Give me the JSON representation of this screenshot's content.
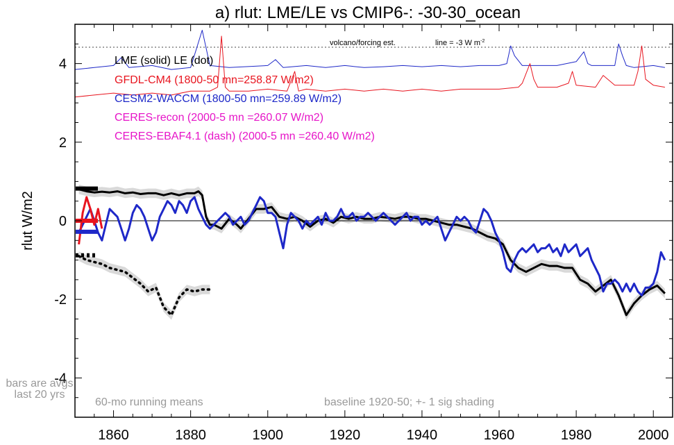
{
  "chart_data": {
    "type": "line",
    "title": "a) rlut: LME/LE vs CMIP6-: -30-30_ocean",
    "ylabel": "rlut W/m2",
    "xlabel": "",
    "xlim": [
      1850,
      2005
    ],
    "ylim": [
      -5,
      5
    ],
    "x_ticks": [
      1860,
      1880,
      1900,
      1920,
      1940,
      1960,
      1980,
      2000
    ],
    "y_ticks": [
      -4,
      -2,
      0,
      2,
      4
    ],
    "zero_line": true,
    "legend": [
      {
        "text": "LME (solid)   LE (dot)",
        "color": "#000000"
      },
      {
        "text": "GFDL-CM4 (1800-50 mn=258.87 W/m2)",
        "color": "#e8141e"
      },
      {
        "text": "CESM2-WACCM (1800-50 mn=259.89 W/m2)",
        "color": "#1e28c8"
      },
      {
        "text": "CERES-recon (2000-5 mn =260.07 W/m2)",
        "color": "#e614c8"
      },
      {
        "text": "CERES-EBAF4.1 (dash) (2000-5 mn =260.40 W/m2)",
        "color": "#e614c8"
      }
    ],
    "annotations": {
      "volcano": "volcano/forcing est.",
      "line_note": "line = -3 W m",
      "line_note_sup": "-2",
      "bars_note": [
        "bars are avgs",
        "last 20 yrs"
      ],
      "running_note": "60-mo running means",
      "baseline_note": "baseline 1920-50; +- 1 sig shading"
    },
    "series": [
      {
        "name": "LME (solid)",
        "color": "#000000",
        "style": "solid",
        "shading": "+-1 sig",
        "x": [
          1851,
          1853,
          1855,
          1857,
          1859,
          1861,
          1863,
          1865,
          1867,
          1869,
          1871,
          1873,
          1875,
          1877,
          1879,
          1881,
          1882,
          1883,
          1884,
          1885,
          1886,
          1888,
          1890,
          1892,
          1893,
          1895,
          1897,
          1899,
          1901,
          1903,
          1905,
          1907,
          1909,
          1911,
          1913,
          1915,
          1917,
          1919,
          1921,
          1923,
          1925,
          1927,
          1929,
          1931,
          1933,
          1935,
          1937,
          1939,
          1941,
          1943,
          1945,
          1947,
          1949,
          1951,
          1953,
          1955,
          1957,
          1959,
          1961,
          1963,
          1965,
          1967,
          1969,
          1971,
          1973,
          1975,
          1977,
          1979,
          1981,
          1983,
          1985,
          1987,
          1989,
          1991,
          1993,
          1995,
          1997,
          1999,
          2001,
          2003
        ],
        "y": [
          0.8,
          0.75,
          0.72,
          0.74,
          0.72,
          0.75,
          0.7,
          0.72,
          0.68,
          0.7,
          0.7,
          0.65,
          0.7,
          0.65,
          0.7,
          0.7,
          0.75,
          0.65,
          0.1,
          -0.1,
          -0.1,
          -0.2,
          0.05,
          -0.1,
          -0.2,
          0.05,
          0.3,
          0.3,
          0.35,
          0.1,
          0.05,
          0.1,
          0.0,
          -0.15,
          0.0,
          0.05,
          -0.05,
          0.1,
          0.05,
          0.1,
          0.05,
          0.05,
          0.1,
          0.08,
          0.05,
          0.1,
          0.1,
          0.05,
          0.05,
          0.0,
          -0.05,
          -0.1,
          -0.1,
          -0.15,
          -0.2,
          -0.3,
          -0.4,
          -0.45,
          -0.6,
          -1.0,
          -1.2,
          -1.3,
          -1.2,
          -1.1,
          -1.15,
          -1.15,
          -1.2,
          -1.2,
          -1.5,
          -1.6,
          -1.8,
          -1.65,
          -1.5,
          -1.9,
          -2.4,
          -2.1,
          -1.9,
          -1.75,
          -1.65,
          -1.85
        ]
      },
      {
        "name": "LE (dot)",
        "color": "#000000",
        "style": "dot",
        "shading": "+-1 sig",
        "x": [
          1851,
          1853,
          1855,
          1857,
          1859,
          1861,
          1863,
          1865,
          1867,
          1869,
          1871,
          1873,
          1875,
          1877,
          1879,
          1881,
          1883,
          1885
        ],
        "y": [
          -0.9,
          -1.0,
          -1.05,
          -1.1,
          -1.2,
          -1.25,
          -1.3,
          -1.45,
          -1.6,
          -1.8,
          -1.7,
          -2.2,
          -2.4,
          -1.95,
          -1.75,
          -1.8,
          -1.75,
          -1.75
        ]
      },
      {
        "name": "CESM2-WACCM",
        "color": "#1e28c8",
        "style": "solid",
        "x": [
          1851,
          1852,
          1853,
          1854,
          1855,
          1856,
          1857,
          1858,
          1859,
          1860,
          1861,
          1862,
          1863,
          1864,
          1865,
          1866,
          1867,
          1868,
          1869,
          1870,
          1871,
          1872,
          1873,
          1874,
          1875,
          1876,
          1877,
          1878,
          1879,
          1880,
          1881,
          1882,
          1883,
          1884,
          1885,
          1886,
          1887,
          1888,
          1889,
          1890,
          1891,
          1892,
          1893,
          1894,
          1895,
          1896,
          1897,
          1898,
          1899,
          1900,
          1901,
          1902,
          1903,
          1904,
          1905,
          1906,
          1907,
          1908,
          1909,
          1910,
          1911,
          1912,
          1913,
          1914,
          1915,
          1916,
          1917,
          1918,
          1919,
          1920,
          1921,
          1922,
          1923,
          1924,
          1925,
          1926,
          1927,
          1928,
          1929,
          1930,
          1931,
          1932,
          1933,
          1934,
          1935,
          1936,
          1937,
          1938,
          1939,
          1940,
          1941,
          1942,
          1943,
          1944,
          1945,
          1946,
          1947,
          1948,
          1949,
          1950,
          1951,
          1952,
          1953,
          1954,
          1955,
          1956,
          1957,
          1958,
          1959,
          1960,
          1961,
          1962,
          1963,
          1964,
          1965,
          1966,
          1967,
          1968,
          1969,
          1970,
          1971,
          1972,
          1973,
          1974,
          1975,
          1976,
          1977,
          1978,
          1979,
          1980,
          1981,
          1982,
          1983,
          1984,
          1985,
          1986,
          1987,
          1988,
          1989,
          1990,
          1991,
          1992,
          1993,
          1994,
          1995,
          1996,
          1997,
          1998,
          1999,
          2000,
          2001,
          2002,
          2003
        ],
        "y": [
          -0.3,
          -0.1,
          0.1,
          0.3,
          0.0,
          -0.3,
          -0.5,
          -0.1,
          0.3,
          0.2,
          0.1,
          -0.2,
          -0.5,
          -0.2,
          0.2,
          0.4,
          0.3,
          0.1,
          -0.2,
          -0.5,
          -0.3,
          0.1,
          0.3,
          0.5,
          0.4,
          0.2,
          0.5,
          0.4,
          0.2,
          0.5,
          0.6,
          0.3,
          0.1,
          -0.1,
          -0.2,
          -0.1,
          0.0,
          0.1,
          0.2,
          0.1,
          -0.1,
          0.0,
          0.1,
          -0.1,
          0.0,
          0.2,
          0.4,
          0.6,
          0.5,
          0.2,
          0.2,
          0.1,
          -0.3,
          -0.7,
          -0.1,
          0.2,
          0.1,
          0.0,
          -0.2,
          0.0,
          -0.1,
          0.0,
          0.1,
          -0.1,
          0.2,
          0.0,
          0.0,
          0.1,
          0.3,
          0.1,
          0.1,
          0.2,
          0.0,
          0.1,
          0.1,
          0.2,
          0.1,
          0.0,
          0.1,
          0.2,
          0.1,
          0.0,
          -0.1,
          0.0,
          0.1,
          0.2,
          0.0,
          0.1,
          0.1,
          -0.1,
          0.0,
          -0.1,
          0.0,
          0.1,
          -0.2,
          -0.5,
          -0.3,
          -0.1,
          0.1,
          0.0,
          0.1,
          0.0,
          -0.2,
          -0.3,
          0.0,
          0.3,
          0.2,
          0.0,
          -0.3,
          -0.5,
          -0.8,
          -1.2,
          -1.3,
          -1.0,
          -0.8,
          -0.7,
          -0.8,
          -0.7,
          -0.6,
          -0.8,
          -0.7,
          -0.7,
          -0.6,
          -0.8,
          -0.7,
          -0.9,
          -0.6,
          -0.8,
          -0.7,
          -0.6,
          -0.9,
          -0.8,
          -0.7,
          -1.0,
          -1.2,
          -1.4,
          -1.8,
          -1.6,
          -1.6,
          -1.5,
          -1.6,
          -1.8,
          -1.6,
          -1.8,
          -1.6,
          -1.8,
          -1.9,
          -1.7,
          -1.7,
          -1.6,
          -1.3,
          -0.8,
          -1.0
        ]
      },
      {
        "name": "GFDL-CM4",
        "color": "#e8141e",
        "style": "solid",
        "x": [
          1851,
          1852,
          1853,
          1854,
          1855,
          1856,
          1857
        ],
        "y": [
          -0.6,
          0.2,
          0.6,
          0.3,
          -0.1,
          0.3,
          -0.2
        ]
      },
      {
        "name": "CESM2-WACCM volcano/forcing est.",
        "color": "#1e28c8",
        "style": "solid",
        "x": [
          1850,
          1855,
          1860,
          1862,
          1864,
          1870,
          1875,
          1880,
          1883,
          1884,
          1885,
          1890,
          1900,
          1902,
          1904,
          1910,
          1915,
          1920,
          1925,
          1930,
          1935,
          1940,
          1945,
          1950,
          1955,
          1960,
          1962,
          1963,
          1964,
          1966,
          1970,
          1975,
          1980,
          1982,
          1983,
          1984,
          1985,
          1990,
          1991,
          1992,
          1993,
          1995,
          2000,
          2003
        ],
        "y": [
          3.85,
          3.9,
          3.95,
          4.15,
          3.9,
          3.95,
          3.85,
          3.9,
          4.85,
          4.4,
          3.95,
          3.9,
          3.95,
          4.1,
          3.9,
          3.95,
          3.9,
          3.95,
          3.9,
          3.92,
          3.95,
          3.92,
          3.95,
          3.92,
          3.95,
          3.95,
          4.0,
          4.45,
          4.2,
          3.95,
          3.95,
          3.95,
          4.05,
          4.3,
          4.0,
          3.95,
          3.95,
          3.95,
          4.5,
          4.2,
          3.95,
          3.9,
          3.95,
          3.9
        ]
      },
      {
        "name": "GFDL-CM4 volcano/forcing est.",
        "color": "#e8141e",
        "style": "solid",
        "x": [
          1850,
          1855,
          1860,
          1865,
          1870,
          1875,
          1880,
          1885,
          1887,
          1888,
          1889,
          1890,
          1895,
          1900,
          1905,
          1907,
          1908,
          1910,
          1915,
          1920,
          1925,
          1930,
          1935,
          1940,
          1945,
          1950,
          1955,
          1960,
          1965,
          1966,
          1968,
          1969,
          1970,
          1975,
          1978,
          1979,
          1980,
          1985,
          1987,
          1990,
          1995,
          1996,
          1997,
          1998,
          2000,
          2003
        ],
        "y": [
          3.15,
          3.2,
          3.25,
          3.2,
          3.25,
          3.2,
          3.3,
          3.3,
          3.4,
          4.7,
          3.4,
          3.3,
          3.3,
          3.35,
          3.3,
          3.8,
          3.3,
          3.35,
          3.3,
          3.35,
          3.3,
          3.35,
          3.3,
          3.35,
          3.3,
          3.35,
          3.35,
          3.35,
          3.4,
          3.5,
          4.0,
          3.6,
          3.4,
          3.4,
          3.5,
          3.8,
          3.45,
          3.4,
          3.7,
          3.45,
          3.45,
          3.8,
          4.45,
          3.6,
          3.45,
          3.4
        ]
      }
    ],
    "bars": [
      {
        "label": "LME",
        "color": "#000000",
        "style": "solid",
        "value": 0.82
      },
      {
        "label": "LE",
        "color": "#000000",
        "style": "dot",
        "value": -0.88
      },
      {
        "label": "GFDL-CM4",
        "color": "#e8141e",
        "style": "solid",
        "value": 0.0
      },
      {
        "label": "CESM2-WACCM",
        "color": "#1e28c8",
        "style": "solid",
        "value": -0.28
      }
    ]
  }
}
